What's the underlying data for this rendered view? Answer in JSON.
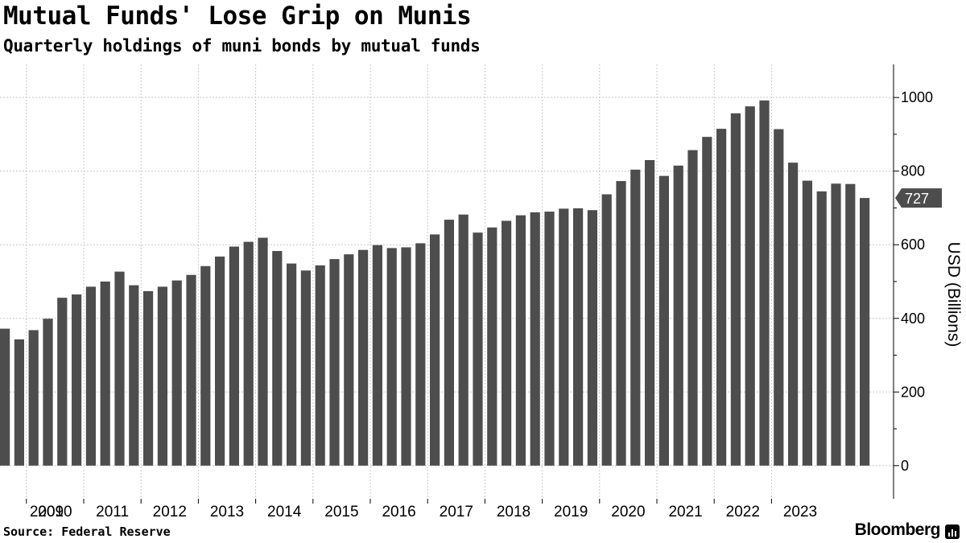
{
  "header": {
    "title": "Mutual Funds' Lose Grip on Munis",
    "subtitle": "Quarterly holdings of muni bonds by mutual funds"
  },
  "footer": {
    "source": "Source: Federal Reserve",
    "brand": "Bloomberg"
  },
  "colors": {
    "bar": "#4d4d4d",
    "grid": "#c8c8c8",
    "axis": "#000000",
    "background": "#ffffff",
    "callout": "#4d4d4d"
  },
  "chart_data": {
    "type": "bar",
    "title": "Mutual Funds' Lose Grip on Munis",
    "subtitle": "Quarterly holdings of muni bonds by mutual funds",
    "ylabel": "USD (Billions)",
    "xlabel": "",
    "ylim": [
      -90,
      1090
    ],
    "yticks": [
      0,
      200,
      400,
      600,
      800,
      1000
    ],
    "y_axis_side": "right",
    "grid": true,
    "year_labels": [
      "2009",
      "2010",
      "2011",
      "2012",
      "2013",
      "2014",
      "2015",
      "2016",
      "2017",
      "2018",
      "2019",
      "2020",
      "2021",
      "2022",
      "2023"
    ],
    "first_year": 2009,
    "last_value_label": "727",
    "series": [
      {
        "values": [
          372,
          343,
          368,
          399,
          456,
          465,
          486,
          500,
          527,
          490,
          474,
          486,
          503,
          518,
          542,
          568,
          595,
          608,
          619,
          583,
          549,
          530,
          544,
          561,
          574,
          586,
          599,
          591,
          593,
          604,
          628,
          668,
          682,
          633,
          647,
          665,
          680,
          688,
          690,
          698,
          699,
          694,
          737,
          773,
          804,
          830,
          787,
          815,
          857,
          893,
          915,
          957,
          976,
          992,
          914,
          823,
          774,
          745,
          766,
          765,
          727
        ]
      }
    ]
  }
}
